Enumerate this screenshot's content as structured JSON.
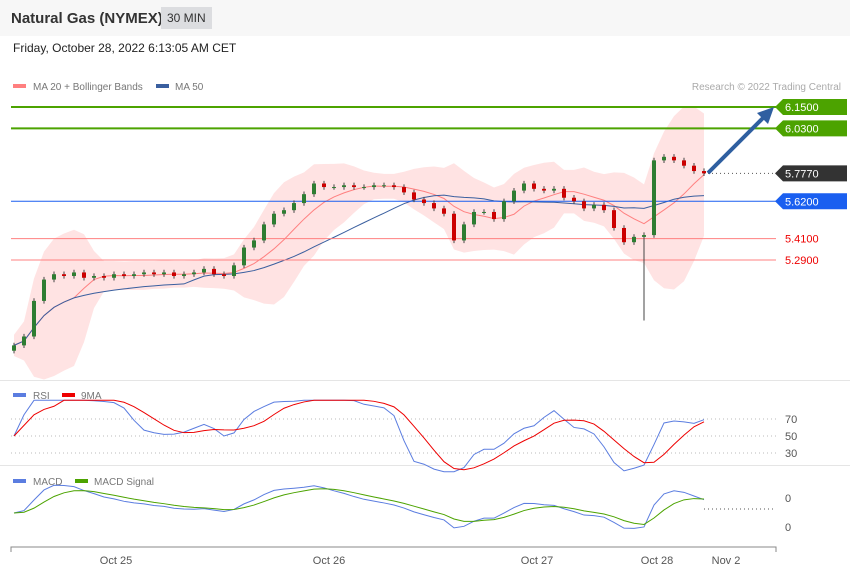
{
  "header": {
    "title": "Natural Gas (NYMEX)",
    "timeframe": "30 MIN",
    "date": "Friday, October 28, 2022 6:13:05 AM CET"
  },
  "legend": {
    "ma20": "MA 20 + Bollinger Bands",
    "ma50": "MA 50",
    "copyright": "Research © 2022 Trading Central",
    "rsi": "RSI",
    "rsi_ma": "9MA",
    "macd": "MACD",
    "macd_signal": "MACD Signal"
  },
  "colors": {
    "resistance": "#4ca300",
    "pivot": "#333333",
    "ma_level": "#1a5ff0",
    "support": "#ff0000",
    "band": "#ffd9da",
    "ma50": "#3a5f9f",
    "up": "#2e7d32",
    "down": "#cc0000"
  },
  "chart_data": {
    "type": "candlestick",
    "closes": [
      4.81,
      4.86,
      5.06,
      5.18,
      5.21,
      5.2,
      5.22,
      5.19,
      5.2,
      5.19,
      5.21,
      5.2,
      5.21,
      5.22,
      5.21,
      5.22,
      5.2,
      5.21,
      5.22,
      5.24,
      5.21,
      5.2,
      5.26,
      5.36,
      5.4,
      5.49,
      5.55,
      5.57,
      5.61,
      5.66,
      5.72,
      5.7,
      5.7,
      5.71,
      5.7,
      5.7,
      5.71,
      5.71,
      5.7,
      5.67,
      5.63,
      5.61,
      5.58,
      5.55,
      5.4,
      5.49,
      5.56,
      5.56,
      5.52,
      5.62,
      5.68,
      5.72,
      5.69,
      5.68,
      5.69,
      5.64,
      5.62,
      5.58,
      5.6,
      5.57,
      5.47,
      5.39,
      5.42,
      5.43,
      5.85,
      5.87,
      5.85,
      5.82,
      5.79,
      5.777
    ],
    "levels": [
      {
        "label": "6.1500",
        "value": 6.15,
        "type": "resistance"
      },
      {
        "label": "6.0300",
        "value": 6.03,
        "type": "resistance"
      },
      {
        "label": "5.7770",
        "value": 5.777,
        "type": "pivot"
      },
      {
        "label": "5.6200",
        "value": 5.62,
        "type": "ma"
      },
      {
        "label": "5.4100",
        "value": 5.41,
        "type": "support"
      },
      {
        "label": "5.2900",
        "value": 5.29,
        "type": "support"
      }
    ],
    "x_ticks": [
      "Oct 25",
      "Oct 26",
      "Oct 27",
      "Oct 28",
      "Nov 2"
    ],
    "rsi_ticks": [
      "70",
      "50",
      "30"
    ],
    "macd_ticks": [
      "0",
      "0"
    ]
  }
}
